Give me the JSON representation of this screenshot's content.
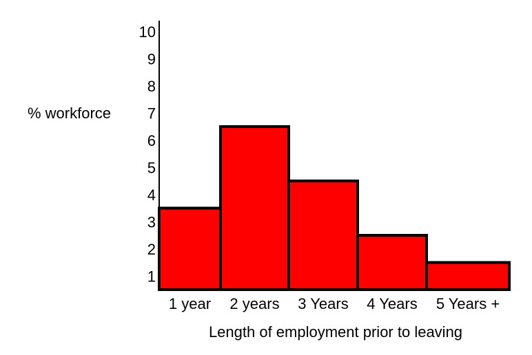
{
  "chart_data": {
    "type": "bar",
    "title": "",
    "xlabel": "Length of employment prior to leaving",
    "ylabel": "% workforce",
    "categories": [
      "1 year",
      "2 years",
      "3 Years",
      "4 Years",
      "5 Years +"
    ],
    "values": [
      3.5,
      6.5,
      4.5,
      2.5,
      1.5
    ],
    "yticks": [
      "1",
      "2",
      "3",
      "4",
      "5",
      "6",
      "7",
      "8",
      "9",
      "10"
    ],
    "ylim": [
      0.5,
      10.5
    ],
    "grid": false,
    "legend": "none",
    "colors": {
      "bar_fill": "#ff0000",
      "bar_stroke": "#000000",
      "axis": "#000000",
      "text": "#000000"
    }
  }
}
